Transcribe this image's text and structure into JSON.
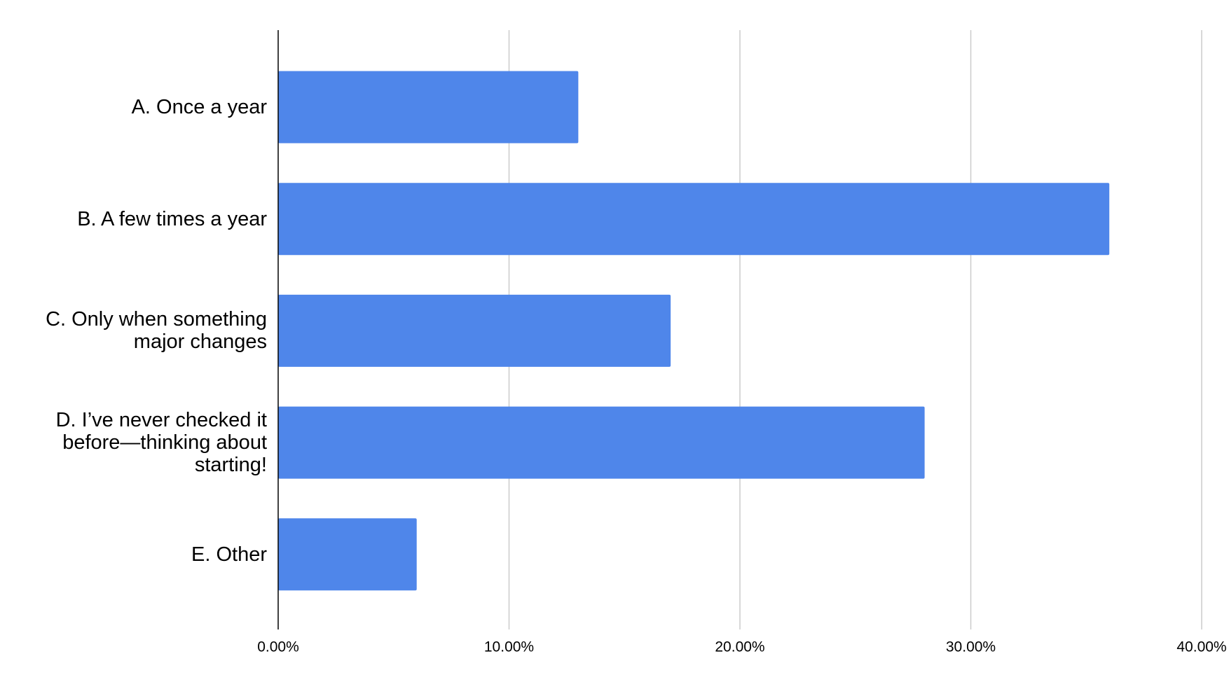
{
  "chart_data": {
    "type": "bar",
    "orientation": "horizontal",
    "categories": [
      "A. Once a year",
      "B. A few times a year",
      "C. Only when something major changes",
      "D. I’ve never checked it before—thinking about starting!",
      "E. Other"
    ],
    "values": [
      13,
      36,
      17,
      28,
      6
    ],
    "color": "#4f86ea",
    "xlim": [
      0,
      40
    ],
    "xticks": [
      {
        "value": 0,
        "label": "0.00%"
      },
      {
        "value": 10,
        "label": "10.00%"
      },
      {
        "value": 20,
        "label": "20.00%"
      },
      {
        "value": 30,
        "label": "30.00%"
      },
      {
        "value": 40,
        "label": "40.00%"
      }
    ],
    "grid": true
  }
}
